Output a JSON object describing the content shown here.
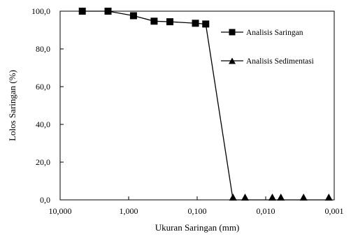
{
  "chart_data": {
    "type": "line",
    "title": "",
    "xlabel": "Ukuran Saringan (mm)",
    "ylabel": "Lolos Saringan (%)",
    "x_scale": "log",
    "x_reversed": true,
    "xlim": [
      10,
      0.001
    ],
    "ylim": [
      0,
      100
    ],
    "x_ticks": [
      10,
      1,
      0.1,
      0.01,
      0.001
    ],
    "x_tick_labels": [
      "10,000",
      "1,000",
      "0,100",
      "0,010",
      "0,001"
    ],
    "y_ticks": [
      0,
      20,
      40,
      60,
      80,
      100
    ],
    "y_tick_labels": [
      "0,0",
      "20,0",
      "40,0",
      "60,0",
      "80,0",
      "100,0"
    ],
    "grid": false,
    "legend_position": "top-right",
    "series": [
      {
        "name": "Analisis Saringan",
        "marker": "square",
        "color": "#000000",
        "x": [
          4.75,
          2.0,
          0.85,
          0.425,
          0.25,
          0.106,
          0.075
        ],
        "y": [
          100.0,
          100.0,
          97.6,
          94.7,
          94.4,
          93.6,
          93.2
        ]
      },
      {
        "name": "Analisis Sedimentasi",
        "marker": "triangle",
        "color": "#000000",
        "x": [
          0.075,
          0.03,
          0.02,
          0.008,
          0.006,
          0.0028,
          0.0012
        ],
        "y": [
          93.2,
          0,
          0,
          0,
          0,
          0,
          0
        ]
      }
    ]
  }
}
